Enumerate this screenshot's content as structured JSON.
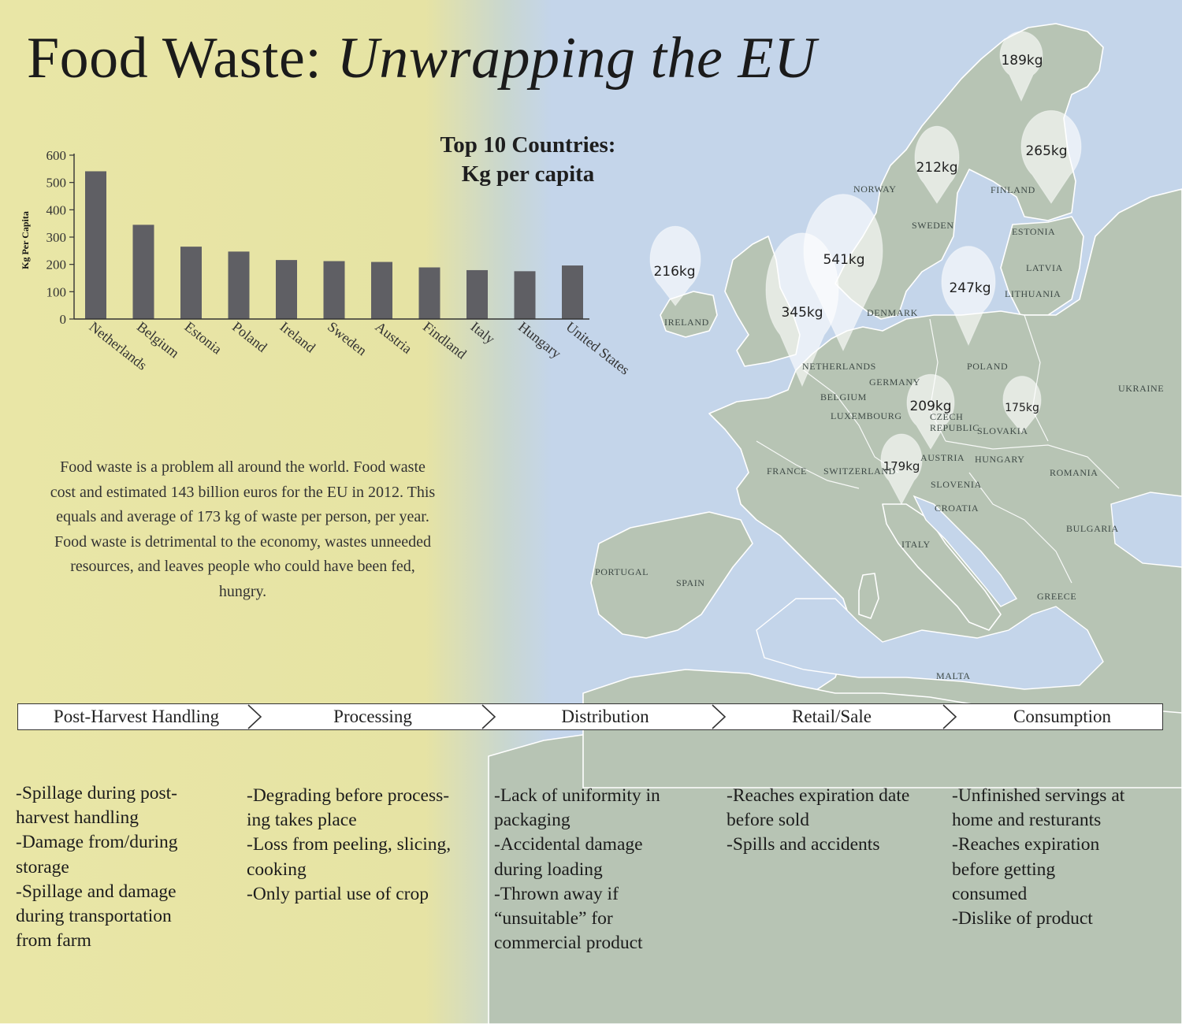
{
  "title": {
    "main": "Food Waste:",
    "italic": "Unwrapping the EU"
  },
  "chart_data": {
    "type": "bar",
    "title_lines": [
      "Top 10 Countries:",
      "Kg per capita"
    ],
    "ylabel": "Kg Per Capita",
    "xlabel": "",
    "ylim": [
      0,
      600
    ],
    "yticks": [
      0,
      100,
      200,
      300,
      400,
      500,
      600
    ],
    "categories": [
      "Netherlands",
      "Belgium",
      "Estonia",
      "Poland",
      "Ireland",
      "Sweden",
      "Austria",
      "Findland",
      "Italy",
      "Hungary",
      "United States"
    ],
    "values": [
      541,
      345,
      265,
      247,
      216,
      212,
      209,
      189,
      179,
      175,
      196
    ],
    "color": "#5f5f64",
    "grid": false,
    "legend": "none"
  },
  "intro_text": "Food waste is a problem all around the world. Food waste cost and estimated 143 billion euros for the EU in 2012. This equals and average of 173 kg of waste per person, per year. Food waste is detrimental to the economy, wastes unneeded resources, and leaves people who could have been fed, hungry.",
  "map": {
    "countries": [
      "NORWAY",
      "SWEDEN",
      "FINLAND",
      "ESTONIA",
      "LATVIA",
      "LITHUANIA",
      "IRELAND",
      "DENMARK",
      "NETHERLANDS",
      "GERMANY",
      "POLAND",
      "BELGIUM",
      "LUXEMBOURG",
      "CZECH REPUBLIC",
      "SLOVAKIA",
      "UKRAINE",
      "FRANCE",
      "SWITZERLAND",
      "AUSTRIA",
      "HUNGARY",
      "ROMANIA",
      "SLOVENIA",
      "CROATIA",
      "BULGARIA",
      "ITALY",
      "PORTUGAL",
      "SPAIN",
      "GREECE",
      "MALTA"
    ],
    "bubbles": [
      "189kg",
      "265kg",
      "212kg",
      "541kg",
      "216kg",
      "345kg",
      "247kg",
      "209kg",
      "175kg",
      "179kg"
    ]
  },
  "stages": [
    "Post-Harvest Handling",
    "Processing",
    "Distribution",
    "Retail/Sale",
    "Consumption"
  ],
  "causes": [
    [
      "-Spillage during post-\nharvest handling",
      "-Damage from/during\nstorage",
      "-Spillage and damage\nduring transportation\nfrom farm"
    ],
    [
      "-Degrading before process-\ning takes place",
      "-Loss from peeling, slicing,\ncooking",
      "-Only partial use of crop"
    ],
    [
      "-Lack of uniformity in\npackaging",
      "-Accidental damage\nduring loading",
      "-Thrown away if\n“unsuitable” for\ncommercial product"
    ],
    [
      "-Reaches expiration date\nbefore sold",
      "-Spills and accidents"
    ],
    [
      "-Unfinished servings at\nhome and resturants",
      "-Reaches expiration\nbefore getting\nconsumed",
      "-Dislike of product"
    ]
  ],
  "colors": {
    "land": "#b7c4b4",
    "sea": "#c4d5ea",
    "paper": "#e8e5a5",
    "bar": "#5f5f64"
  }
}
